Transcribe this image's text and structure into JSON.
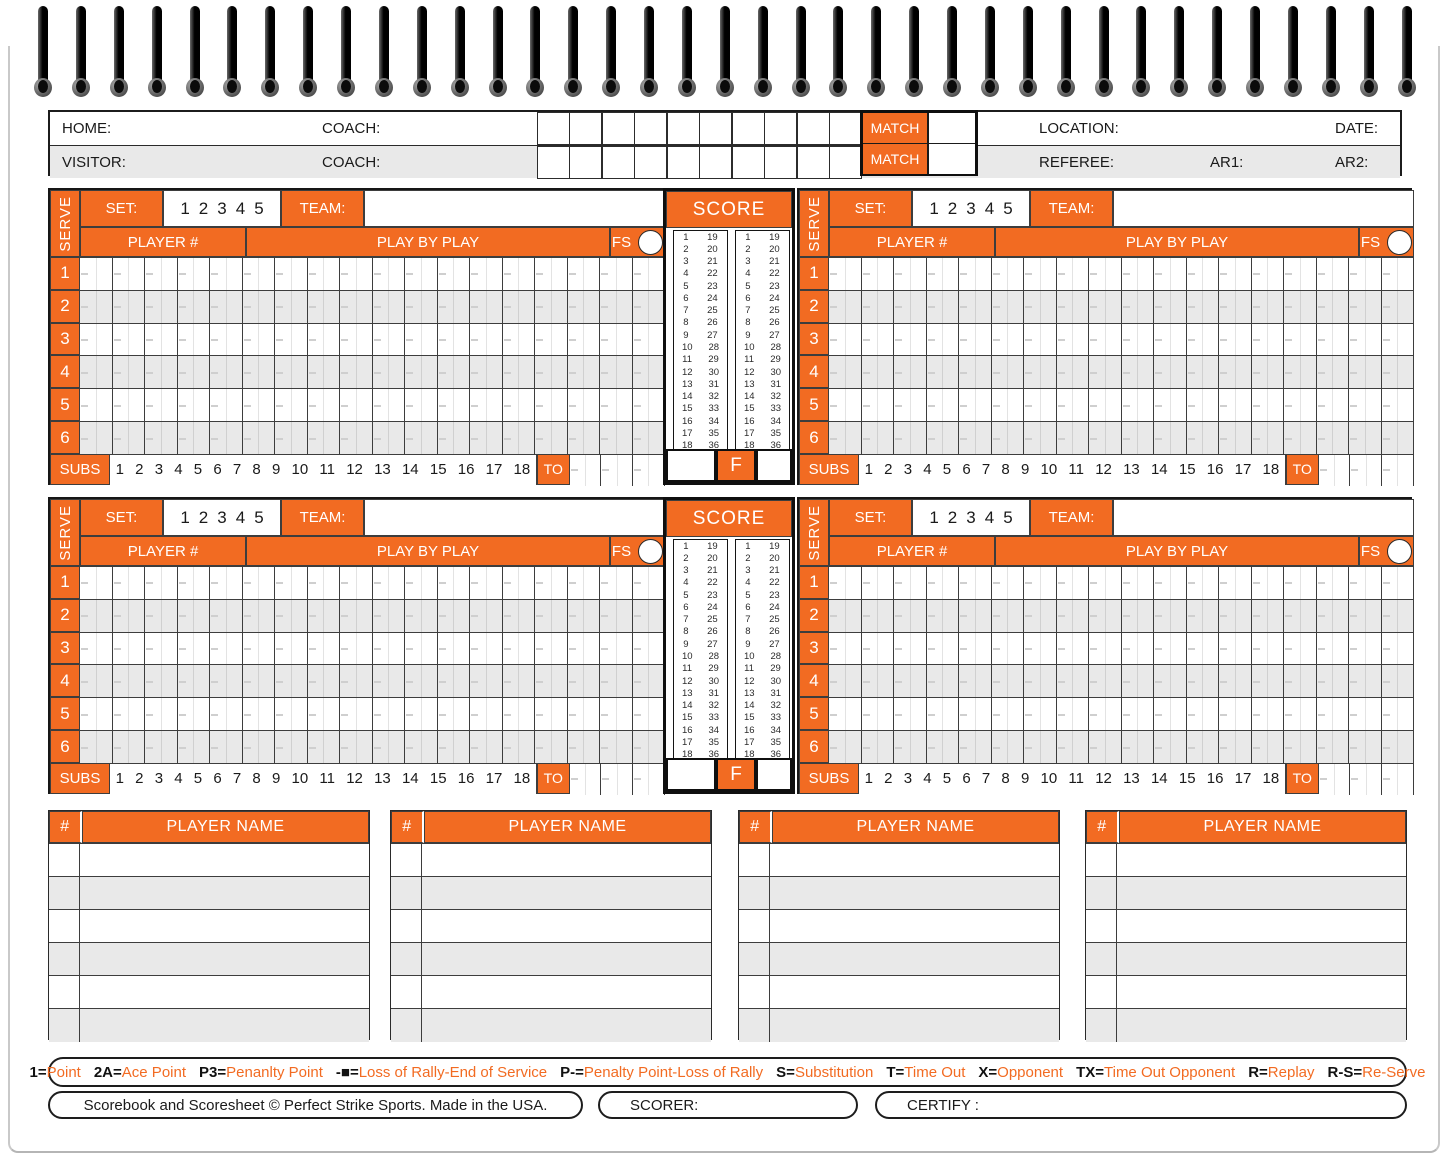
{
  "colors": {
    "accent": "#F26B22",
    "row_alt": "#E9E9E9"
  },
  "header": {
    "home_label": "HOME:",
    "visitor_label": "VISITOR:",
    "coach_label": "COACH:",
    "set_numbers": [
      "1",
      "2",
      "3",
      "4",
      "5"
    ],
    "match_label": "MATCH",
    "location_label": "LOCATION:",
    "date_label": "DATE:",
    "referee_label": "REFEREE:",
    "ar1_label": "AR1:",
    "ar2_label": "AR2:"
  },
  "grid": {
    "serve_label": "SERVE",
    "set_label": "SET:",
    "set_numbers": [
      "1",
      "2",
      "3",
      "4",
      "5"
    ],
    "team_label": "TEAM:",
    "player_number_label": "PLAYER #",
    "play_by_play_label": "PLAY BY PLAY",
    "first_serve_label": "FS",
    "serve_rows": [
      "1",
      "2",
      "3",
      "4",
      "5",
      "6"
    ],
    "subs_label": "SUBS",
    "subs_numbers": [
      "1",
      "2",
      "3",
      "4",
      "5",
      "6",
      "7",
      "8",
      "9",
      "10",
      "11",
      "12",
      "13",
      "14",
      "15",
      "16",
      "17",
      "18"
    ],
    "timeout_label": "TO",
    "score_title": "SCORE",
    "final_label": "F",
    "score_col_a": [
      1,
      2,
      3,
      4,
      5,
      6,
      7,
      8,
      9,
      10,
      11,
      12,
      13,
      14,
      15,
      16,
      17,
      18
    ],
    "score_col_b": [
      19,
      20,
      21,
      22,
      23,
      24,
      25,
      26,
      27,
      28,
      29,
      30,
      31,
      32,
      33,
      34,
      35,
      36
    ]
  },
  "roster": {
    "number_header": "#",
    "name_header": "PLAYER NAME"
  },
  "legend": {
    "eq": "=",
    "items": [
      {
        "key": "1",
        "value": "Point"
      },
      {
        "key": "2A",
        "value": "Ace Point"
      },
      {
        "key": "P3",
        "value": "Penanlty Point"
      },
      {
        "key": "-■",
        "value": "Loss of Rally-End of Service"
      },
      {
        "key": "P-",
        "value": "Penalty Point-Loss of Rally"
      },
      {
        "key": "S",
        "value": "Substitution"
      },
      {
        "key": "T",
        "value": "Time Out"
      },
      {
        "key": "X",
        "value": "Opponent"
      },
      {
        "key": "TX",
        "value": "Time Out Opponent"
      },
      {
        "key": "R",
        "value": "Replay"
      },
      {
        "key": "R-S",
        "value": "Re-Serve"
      }
    ]
  },
  "footer": {
    "brand": "Scorebook and Scoresheet © Perfect Strike Sports. Made in the USA.",
    "scorer_label": "SCORER:",
    "certify_label": "CERTIFY :"
  }
}
